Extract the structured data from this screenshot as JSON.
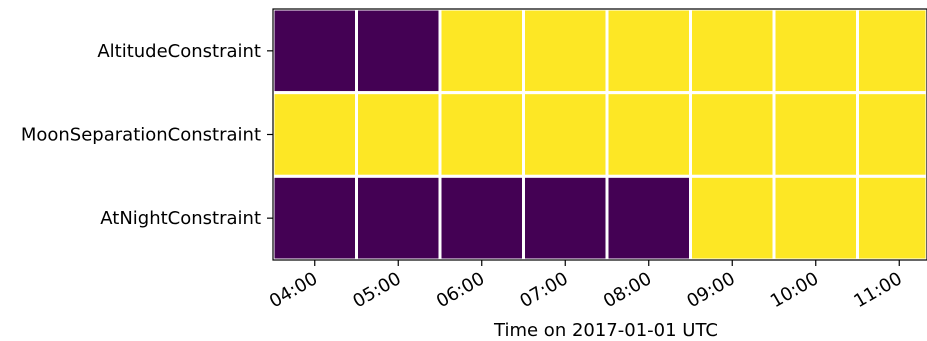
{
  "chart_data": {
    "type": "heatmap",
    "title": "",
    "xlabel": "Time on 2017-01-01 UTC",
    "ylabel": "",
    "x": [
      "04:00",
      "05:00",
      "06:00",
      "07:00",
      "08:00",
      "09:00",
      "10:00",
      "11:00"
    ],
    "y": [
      "AltitudeConstraint",
      "MoonSeparationConstraint",
      "AtNightConstraint"
    ],
    "values": [
      [
        0,
        0,
        1,
        1,
        1,
        1,
        1,
        1
      ],
      [
        1,
        1,
        1,
        1,
        1,
        1,
        1,
        1
      ],
      [
        0,
        0,
        0,
        0,
        0,
        1,
        1,
        1
      ]
    ],
    "colors": {
      "low": "#440154",
      "high": "#fde725",
      "cell_border": "#ffffff"
    },
    "grid": false,
    "legend": "none"
  }
}
